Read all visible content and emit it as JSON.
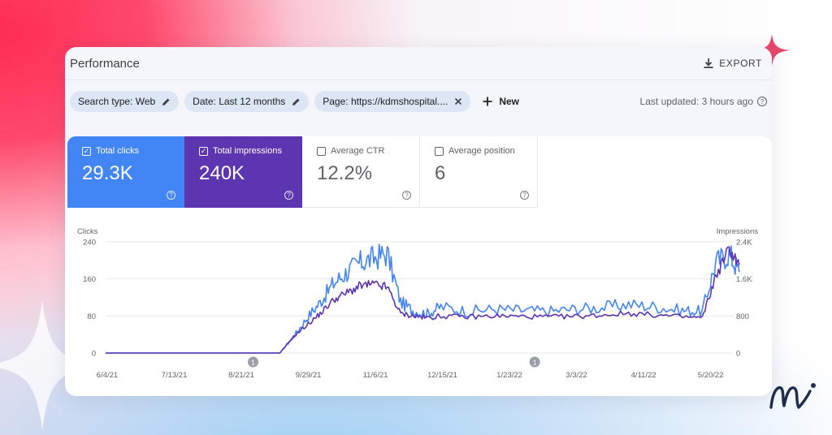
{
  "header": {
    "title": "Performance",
    "export_label": "EXPORT",
    "export_icon": "download-icon"
  },
  "filters": {
    "chips": [
      {
        "label": "Search type: Web",
        "icon": "pencil-icon"
      },
      {
        "label": "Date: Last 12 months",
        "icon": "pencil-icon"
      },
      {
        "label": "Page: https://kdmshospital....",
        "icon": "close-icon"
      }
    ],
    "new_label": "New",
    "last_updated": "Last updated: 3 hours ago"
  },
  "metrics": [
    {
      "label": "Total clicks",
      "value": "29.3K",
      "checked": true
    },
    {
      "label": "Total impressions",
      "value": "240K",
      "checked": true
    },
    {
      "label": "Average CTR",
      "value": "12.2%",
      "checked": false
    },
    {
      "label": "Average position",
      "value": "6",
      "checked": false
    }
  ],
  "colors": {
    "clicks": "#4285f4",
    "impressions": "#5e35b1",
    "accent_sparkle": "#e8466a"
  },
  "chart_data": {
    "type": "line",
    "left_axis_label": "Clicks",
    "right_axis_label": "Impressions",
    "left_ticks": [
      "240",
      "160",
      "80",
      "0"
    ],
    "right_ticks": [
      "2.4K",
      "1.6K",
      "800",
      "0"
    ],
    "ylim_left": [
      0,
      240
    ],
    "ylim_right": [
      0,
      2400
    ],
    "x_tick_labels": [
      "6/4/21",
      "7/13/21",
      "8/21/21",
      "9/29/21",
      "11/6/21",
      "12/15/21",
      "1/23/22",
      "3/3/22",
      "4/11/22",
      "5/20/22"
    ],
    "annotations": [
      {
        "label": "1",
        "x_index": 2.2
      },
      {
        "label": "1",
        "x_index": 6.4
      }
    ],
    "grid": true,
    "series": [
      {
        "name": "Clicks",
        "axis": "left",
        "x": [
          0,
          1,
          2,
          2.6,
          2.8,
          3.0,
          3.2,
          3.4,
          3.6,
          3.8,
          4.0,
          4.2,
          4.4,
          4.6,
          4.8,
          5.0,
          5.4,
          5.8,
          6.2,
          6.6,
          7.0,
          7.4,
          7.8,
          8.2,
          8.6,
          8.9,
          9.1,
          9.3,
          9.45
        ],
        "y": [
          0,
          0,
          0,
          0,
          35,
          75,
          110,
          150,
          175,
          195,
          205,
          215,
          110,
          90,
          85,
          100,
          90,
          95,
          92,
          90,
          95,
          98,
          105,
          100,
          92,
          90,
          195,
          215,
          175
        ]
      },
      {
        "name": "Impressions",
        "axis": "right",
        "x": [
          0,
          1,
          2,
          2.6,
          2.8,
          3.0,
          3.2,
          3.4,
          3.6,
          3.8,
          4.0,
          4.2,
          4.4,
          4.6,
          4.8,
          5.0,
          5.4,
          5.8,
          6.2,
          6.6,
          7.0,
          7.4,
          7.8,
          8.2,
          8.6,
          8.9,
          9.1,
          9.3,
          9.45
        ],
        "y": [
          0,
          0,
          0,
          0,
          350,
          600,
          850,
          1150,
          1300,
          1450,
          1480,
          1420,
          850,
          800,
          760,
          800,
          780,
          800,
          790,
          780,
          790,
          820,
          860,
          820,
          780,
          760,
          1650,
          2250,
          1900
        ]
      }
    ]
  }
}
